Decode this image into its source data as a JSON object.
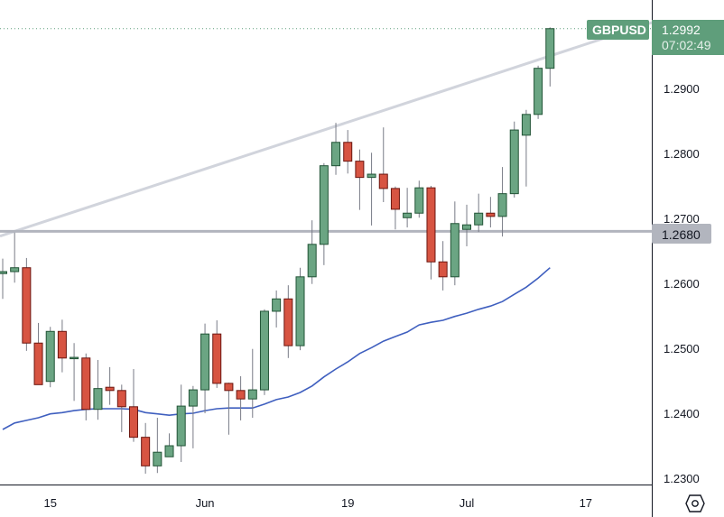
{
  "chart_data": {
    "type": "candlestick",
    "symbol": "GBPUSD",
    "last_price": "1.2992",
    "countdown": "07:02:49",
    "horizontal_level": "1.2680",
    "y_ticks": [
      "1.2900",
      "1.2800",
      "1.2700",
      "1.2600",
      "1.2500",
      "1.2400",
      "1.2300"
    ],
    "ylim": [
      1.229,
      1.3045
    ],
    "x_ticks": [
      {
        "label": "15",
        "date": "May 15"
      },
      {
        "label": "Jun",
        "date": "Jun 1"
      },
      {
        "label": "19",
        "date": "Jun 19"
      },
      {
        "label": "Jul",
        "date": "Jul 3"
      },
      {
        "label": "17",
        "date": "Jul 17"
      }
    ],
    "grid": false,
    "colors": {
      "up": "#6ba583",
      "up_border": "#225437",
      "down": "#d75442",
      "down_border": "#6b1610",
      "ma": "#3f5fbf",
      "level": "#b2b5be",
      "trendline": "#d1d4dc",
      "label": "#5f9e7b"
    },
    "trendline": [
      {
        "date": "May 10",
        "price": 1.268
      },
      {
        "date": "Jul 12",
        "price": 1.295
      }
    ],
    "candles": [
      {
        "date": "May 9",
        "o": 1.2615,
        "h": 1.2638,
        "l": 1.2576,
        "c": 1.2618
      },
      {
        "date": "May 10",
        "o": 1.2618,
        "h": 1.2678,
        "l": 1.2601,
        "c": 1.2624
      },
      {
        "date": "May 11",
        "o": 1.2624,
        "h": 1.2639,
        "l": 1.2496,
        "c": 1.2508
      },
      {
        "date": "May 12",
        "o": 1.2508,
        "h": 1.2539,
        "l": 1.2444,
        "c": 1.2444
      },
      {
        "date": "May 15",
        "o": 1.2449,
        "h": 1.2533,
        "l": 1.244,
        "c": 1.2526
      },
      {
        "date": "May 16",
        "o": 1.2526,
        "h": 1.2544,
        "l": 1.2463,
        "c": 1.2485
      },
      {
        "date": "May 17",
        "o": 1.2485,
        "h": 1.2508,
        "l": 1.2419,
        "c": 1.2486
      },
      {
        "date": "May 18",
        "o": 1.2485,
        "h": 1.2492,
        "l": 1.2389,
        "c": 1.2406
      },
      {
        "date": "May 19",
        "o": 1.2406,
        "h": 1.2482,
        "l": 1.239,
        "c": 1.2438
      },
      {
        "date": "May 22",
        "o": 1.244,
        "h": 1.2471,
        "l": 1.2413,
        "c": 1.2435
      },
      {
        "date": "May 23",
        "o": 1.2435,
        "h": 1.2444,
        "l": 1.2371,
        "c": 1.241
      },
      {
        "date": "May 24",
        "o": 1.241,
        "h": 1.2468,
        "l": 1.2356,
        "c": 1.2363
      },
      {
        "date": "May 25",
        "o": 1.2363,
        "h": 1.2385,
        "l": 1.2307,
        "c": 1.2319
      },
      {
        "date": "May 26",
        "o": 1.2319,
        "h": 1.2393,
        "l": 1.2308,
        "c": 1.234
      },
      {
        "date": "May 29",
        "o": 1.2333,
        "h": 1.2369,
        "l": 1.2333,
        "c": 1.235
      },
      {
        "date": "May 30",
        "o": 1.235,
        "h": 1.2444,
        "l": 1.2325,
        "c": 1.2411
      },
      {
        "date": "May 31",
        "o": 1.2411,
        "h": 1.2442,
        "l": 1.2346,
        "c": 1.2436
      },
      {
        "date": "Jun 1",
        "o": 1.2436,
        "h": 1.2538,
        "l": 1.24,
        "c": 1.2522
      },
      {
        "date": "Jun 2",
        "o": 1.2522,
        "h": 1.2543,
        "l": 1.2439,
        "c": 1.2446
      },
      {
        "date": "Jun 5",
        "o": 1.2446,
        "h": 1.2447,
        "l": 1.2367,
        "c": 1.2435
      },
      {
        "date": "Jun 6",
        "o": 1.2435,
        "h": 1.2457,
        "l": 1.2389,
        "c": 1.2422
      },
      {
        "date": "Jun 7",
        "o": 1.2422,
        "h": 1.2499,
        "l": 1.2393,
        "c": 1.2436
      },
      {
        "date": "Jun 8",
        "o": 1.2436,
        "h": 1.256,
        "l": 1.2428,
        "c": 1.2557
      },
      {
        "date": "Jun 9",
        "o": 1.2557,
        "h": 1.2589,
        "l": 1.2532,
        "c": 1.2576
      },
      {
        "date": "Jun 12",
        "o": 1.2576,
        "h": 1.2597,
        "l": 1.2485,
        "c": 1.2504
      },
      {
        "date": "Jun 13",
        "o": 1.2504,
        "h": 1.2624,
        "l": 1.2497,
        "c": 1.261
      },
      {
        "date": "Jun 14",
        "o": 1.261,
        "h": 1.2697,
        "l": 1.2599,
        "c": 1.266
      },
      {
        "date": "Jun 15",
        "o": 1.266,
        "h": 1.2785,
        "l": 1.2628,
        "c": 1.2781
      },
      {
        "date": "Jun 16",
        "o": 1.2781,
        "h": 1.2847,
        "l": 1.2767,
        "c": 1.2817
      },
      {
        "date": "Jun 19",
        "o": 1.2817,
        "h": 1.2836,
        "l": 1.2769,
        "c": 1.2788
      },
      {
        "date": "Jun 20",
        "o": 1.2788,
        "h": 1.2806,
        "l": 1.2713,
        "c": 1.2763
      },
      {
        "date": "Jun 21",
        "o": 1.2763,
        "h": 1.2801,
        "l": 1.2689,
        "c": 1.2768
      },
      {
        "date": "Jun 22",
        "o": 1.2768,
        "h": 1.284,
        "l": 1.2725,
        "c": 1.2746
      },
      {
        "date": "Jun 23",
        "o": 1.2746,
        "h": 1.2749,
        "l": 1.2683,
        "c": 1.2714
      },
      {
        "date": "Jun 26",
        "o": 1.2701,
        "h": 1.2747,
        "l": 1.2686,
        "c": 1.2708
      },
      {
        "date": "Jun 27",
        "o": 1.2708,
        "h": 1.2758,
        "l": 1.2701,
        "c": 1.2747
      },
      {
        "date": "Jun 28",
        "o": 1.2747,
        "h": 1.275,
        "l": 1.2606,
        "c": 1.2633
      },
      {
        "date": "Jun 29",
        "o": 1.2633,
        "h": 1.2665,
        "l": 1.2589,
        "c": 1.261
      },
      {
        "date": "Jun 30",
        "o": 1.261,
        "h": 1.2726,
        "l": 1.2597,
        "c": 1.2692
      },
      {
        "date": "Jul 3",
        "o": 1.2683,
        "h": 1.2721,
        "l": 1.2657,
        "c": 1.269
      },
      {
        "date": "Jul 4",
        "o": 1.269,
        "h": 1.2738,
        "l": 1.2679,
        "c": 1.2708
      },
      {
        "date": "Jul 5",
        "o": 1.2708,
        "h": 1.2733,
        "l": 1.2686,
        "c": 1.2703
      },
      {
        "date": "Jul 6",
        "o": 1.2703,
        "h": 1.2779,
        "l": 1.2672,
        "c": 1.2738
      },
      {
        "date": "Jul 7",
        "o": 1.2738,
        "h": 1.2849,
        "l": 1.2732,
        "c": 1.2836
      },
      {
        "date": "Jul 10",
        "o": 1.2828,
        "h": 1.2867,
        "l": 1.2749,
        "c": 1.286
      },
      {
        "date": "Jul 11",
        "o": 1.286,
        "h": 1.2935,
        "l": 1.2853,
        "c": 1.2931
      },
      {
        "date": "Jul 12",
        "o": 1.2931,
        "h": 1.2994,
        "l": 1.2903,
        "c": 1.2992
      }
    ],
    "moving_average": [
      1.2375,
      1.2385,
      1.2389,
      1.2393,
      1.2399,
      1.2401,
      1.2404,
      1.2406,
      1.2407,
      1.2407,
      1.2407,
      1.2406,
      1.2401,
      1.2399,
      1.2397,
      1.2399,
      1.24,
      1.2404,
      1.2407,
      1.2408,
      1.2408,
      1.2408,
      1.2414,
      1.2421,
      1.2425,
      1.2432,
      1.2442,
      1.2456,
      1.2468,
      1.2479,
      1.2492,
      1.2501,
      1.2511,
      1.2518,
      1.2525,
      1.2536,
      1.254,
      1.2543,
      1.2549,
      1.2554,
      1.256,
      1.2565,
      1.2572,
      1.2583,
      1.2594,
      1.2608,
      1.2624
    ]
  }
}
